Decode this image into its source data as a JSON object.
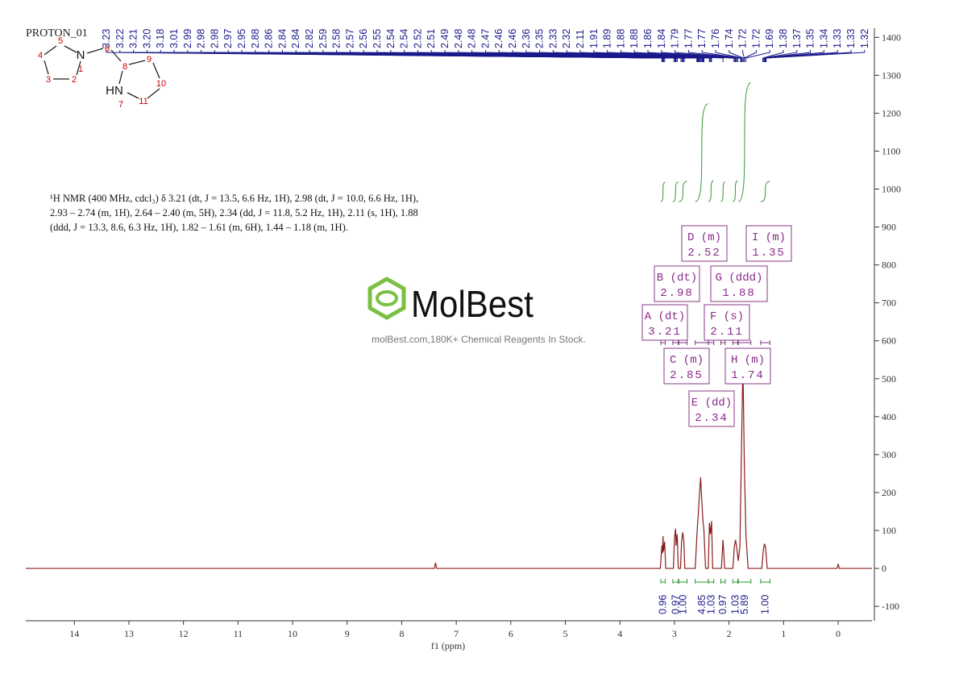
{
  "chart_data": {
    "type": "nmr",
    "title": "PROTON_01",
    "x_label": "f1 (ppm)",
    "xlim": [
      14.89,
      -0.62
    ],
    "xticks": [
      14,
      13,
      12,
      11,
      10,
      9,
      8,
      7,
      6,
      5,
      4,
      3,
      2,
      1,
      0
    ],
    "ylim": [
      -138,
      1424
    ],
    "yticks": [
      -100,
      0,
      100,
      200,
      300,
      400,
      500,
      600,
      700,
      800,
      900,
      1000,
      1100,
      1200,
      1300,
      1400
    ],
    "series": [
      {
        "color": "#8b1a1a",
        "x": [
          14.89,
          7.4,
          7.38,
          7.36,
          3.26,
          3.23,
          3.22,
          3.21,
          3.2,
          3.18,
          3.16,
          3.02,
          3.0,
          2.98,
          2.97,
          2.95,
          2.93,
          2.89,
          2.87,
          2.85,
          2.83,
          2.81,
          2.62,
          2.58,
          2.56,
          2.54,
          2.52,
          2.5,
          2.48,
          2.46,
          2.43,
          2.38,
          2.36,
          2.34,
          2.32,
          2.3,
          2.14,
          2.11,
          2.08,
          1.93,
          1.9,
          1.88,
          1.86,
          1.83,
          1.8,
          1.77,
          1.745,
          1.72,
          1.69,
          1.65,
          1.4,
          1.37,
          1.35,
          1.33,
          1.3,
          0.02,
          0,
          -0.02,
          -0.62
        ],
        "values": [
          0,
          0,
          15,
          0,
          0,
          60,
          40,
          85,
          45,
          70,
          0,
          0,
          80,
          105,
          60,
          90,
          0,
          0,
          70,
          95,
          75,
          0,
          0,
          110,
          150,
          200,
          240,
          180,
          130,
          100,
          0,
          0,
          120,
          90,
          125,
          0,
          0,
          75,
          0,
          0,
          60,
          75,
          55,
          20,
          60,
          330,
          540,
          280,
          90,
          0,
          0,
          50,
          65,
          55,
          0,
          0,
          12,
          0,
          0
        ]
      }
    ],
    "peak_labels": [
      3.23,
      3.22,
      3.21,
      {
        "value": 3.2,
        "label": "3.20"
      },
      3.18,
      3.01,
      2.99,
      2.98,
      2.98,
      2.97,
      2.95,
      2.88,
      2.86,
      2.84,
      2.84,
      2.82,
      2.59,
      2.58,
      2.57,
      2.56,
      2.55,
      2.54,
      2.54,
      2.52,
      2.51,
      2.49,
      2.48,
      2.48,
      2.47,
      2.46,
      2.46,
      2.36,
      2.35,
      2.33,
      2.32,
      2.11,
      1.91,
      1.89,
      1.88,
      1.88,
      1.86,
      1.84,
      1.79,
      1.77,
      1.77,
      1.76,
      1.74,
      1.72,
      1.72,
      1.69,
      1.38,
      1.37,
      1.35,
      1.34,
      1.33,
      1.33,
      1.32
    ],
    "integrals": [
      {
        "range": [
          3.25,
          3.17
        ],
        "value": 0.96,
        "label": "0.96"
      },
      {
        "range": [
          3.03,
          2.93
        ],
        "value": 0.97,
        "label": "0.97"
      },
      {
        "range": [
          2.92,
          2.77
        ],
        "value": 1.0,
        "label": "1.00"
      },
      {
        "range": [
          2.62,
          2.38
        ],
        "value": 4.85,
        "label": "4.85"
      },
      {
        "range": [
          2.38,
          2.28
        ],
        "value": 1.03,
        "label": "1.03"
      },
      {
        "range": [
          2.15,
          2.07
        ],
        "value": 0.97,
        "label": "0.97"
      },
      {
        "range": [
          1.93,
          1.84
        ],
        "value": 1.03,
        "label": "1.03"
      },
      {
        "range": [
          1.83,
          1.6
        ],
        "value": 5.89,
        "label": "5.89"
      },
      {
        "range": [
          1.42,
          1.25
        ],
        "value": 1.0,
        "label": "1.00"
      }
    ],
    "multiplets": [
      {
        "name": "A (dt)",
        "shift": 3.21
      },
      {
        "name": "B (dt)",
        "shift": 2.98
      },
      {
        "name": "C (m)",
        "shift": 2.85
      },
      {
        "name": "D (m)",
        "shift": 2.52
      },
      {
        "name": "E (dd)",
        "shift": 2.34
      },
      {
        "name": "F (s)",
        "shift": 2.11
      },
      {
        "name": "G (ddd)",
        "shift": 1.88
      },
      {
        "name": "H (m)",
        "shift": 1.74
      },
      {
        "name": "I (m)",
        "shift": 1.35
      }
    ]
  },
  "description": [
    "¹H NMR (400 MHz, cdcl₃) δ 3.21 (dt, J = 13.5, 6.6 Hz, 1H), 2.98 (dt, J = 10.0, 6.6 Hz, 1H),",
    "2.93 – 2.74 (m, 1H), 2.64 – 2.40 (m, 5H), 2.34 (dd, J = 11.8, 5.2 Hz, 1H), 2.11 (s, 1H), 1.88",
    "(ddd, J = 13.3, 8.6, 6.3 Hz, 1H), 1.82 – 1.61 (m, 6H), 1.44 – 1.18 (m, 1H)."
  ],
  "structure": {
    "atoms": [
      "5",
      "N",
      "1",
      "4",
      "3",
      "2",
      "6",
      "8",
      "9",
      "10",
      "HN",
      "7",
      "11"
    ]
  },
  "watermark": {
    "logo": "MolBest",
    "tagline": "molBest.com,180K+ Chemical Reagents In Stock."
  }
}
